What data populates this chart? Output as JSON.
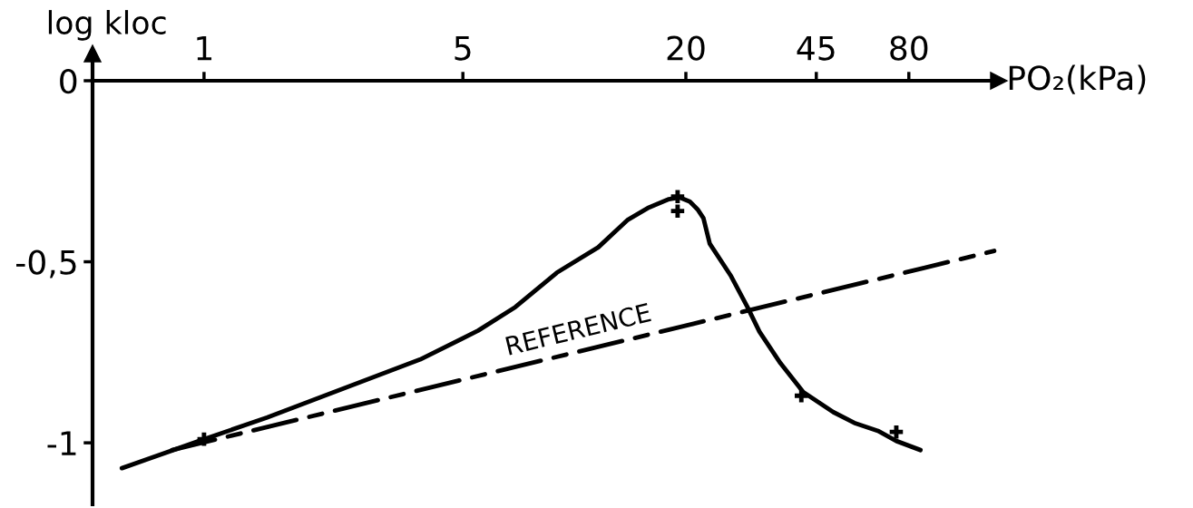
{
  "chart_data": {
    "type": "line",
    "xlabel": "PO₂(kPa)",
    "ylabel": "log kloc",
    "log": "x",
    "xlim": [
      0.5,
      140
    ],
    "xticks": [
      1,
      5,
      20,
      45,
      80
    ],
    "ylim": [
      -1.17,
      0
    ],
    "yticks": [
      0,
      {
        "value": -0.5,
        "label": "-0,5"
      },
      -1
    ],
    "series": [
      {
        "color": "#000000",
        "x": [
          0.6,
          0.97,
          1.48,
          2.38,
          3.83,
          5.5,
          6.93,
          8.97,
          11.6,
          13.9,
          15.9,
          18,
          19.2,
          20.5,
          21.5,
          22.3,
          23.2,
          26.5,
          29.3,
          31.6,
          36,
          41.5,
          50,
          57,
          66,
          74,
          86
        ],
        "values": [
          -1.07,
          -0.995,
          -0.93,
          -0.85,
          -0.77,
          -0.69,
          -0.625,
          -0.53,
          -0.46,
          -0.385,
          -0.35,
          -0.327,
          -0.322,
          -0.334,
          -0.355,
          -0.379,
          -0.45,
          -0.54,
          -0.624,
          -0.693,
          -0.78,
          -0.86,
          -0.915,
          -0.945,
          -0.967,
          -0.995,
          -1.02
        ]
      },
      {
        "type": "scatter",
        "color": "#000000",
        "marker": "cross",
        "x": [
          1,
          19,
          19,
          41,
          74
        ],
        "values": [
          -0.99,
          -0.32,
          -0.36,
          -0.87,
          -0.97
        ]
      },
      {
        "name": "REFERENCE",
        "color": "#000000",
        "line_style": "dashed",
        "x": [
          0.82,
          136
        ],
        "values": [
          -1.02,
          -0.47
        ]
      }
    ]
  }
}
